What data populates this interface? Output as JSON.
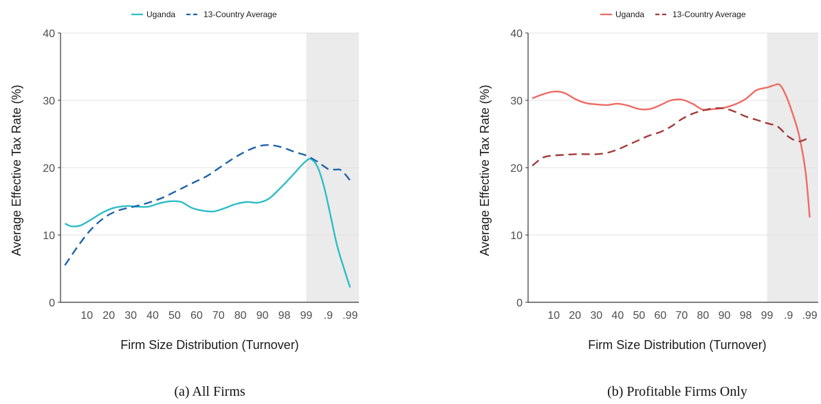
{
  "colors": {
    "panel_a": {
      "uganda": "#2dbdc4",
      "average": "#1f63a8"
    },
    "panel_b": {
      "uganda": "#ef6a64",
      "average": "#a33a3a"
    },
    "shade": "#ebebeb",
    "grid": "#e2e2e2",
    "axis": "#333333"
  },
  "chart_data": [
    {
      "type": "line",
      "caption": "(a) All Firms",
      "xlabel": "Firm Size Distribution (Turnover)",
      "ylabel": "Average Effective Tax Rate (%)",
      "ylim": [
        0,
        40
      ],
      "yticks": [
        0,
        10,
        20,
        30,
        40
      ],
      "xtick_labels": [
        "10",
        "20",
        "30",
        "40",
        "50",
        "60",
        "70",
        "80",
        "90",
        "98",
        "99",
        ".9",
        ".99"
      ],
      "xtick_index": [
        1,
        2,
        3,
        4,
        5,
        6,
        7,
        8,
        9,
        10,
        11,
        12,
        13
      ],
      "xlim": [
        -0.2,
        13.4
      ],
      "shaded_region": [
        11,
        13.4
      ],
      "grid": true,
      "legend_position": "top",
      "series": [
        {
          "name": "Uganda",
          "style": "solid",
          "x": [
            0,
            0.3,
            0.7,
            1.2,
            1.7,
            2.2,
            2.8,
            3.3,
            3.8,
            4.3,
            4.8,
            5.3,
            5.8,
            6.3,
            6.8,
            7.3,
            7.8,
            8.3,
            8.8,
            9.3,
            9.8,
            10.3,
            10.8,
            11,
            11.2,
            11.5,
            11.8,
            12.1,
            12.4,
            12.7,
            13
          ],
          "y": [
            11.7,
            11.3,
            11.4,
            12.3,
            13.3,
            14,
            14.3,
            14.2,
            14.2,
            14.7,
            15,
            14.9,
            14,
            13.6,
            13.5,
            14,
            14.6,
            14.9,
            14.8,
            15.4,
            16.9,
            18.6,
            20.4,
            21,
            21.3,
            20.2,
            17.3,
            13,
            8.5,
            5.2,
            2.2
          ]
        },
        {
          "name": "13-Country Average",
          "style": "dashed",
          "x": [
            0,
            0.5,
            1,
            1.5,
            2,
            2.5,
            3,
            3.5,
            4,
            4.5,
            5,
            5.5,
            6,
            6.5,
            7,
            7.5,
            8,
            8.5,
            9,
            9.5,
            10,
            10.5,
            11,
            11.5,
            12,
            12.3,
            12.6,
            13
          ],
          "y": [
            5.5,
            7.9,
            10.1,
            11.8,
            13,
            13.7,
            14.1,
            14.5,
            15,
            15.6,
            16.4,
            17.2,
            18,
            18.8,
            19.9,
            21,
            22,
            22.8,
            23.3,
            23.3,
            22.9,
            22.3,
            21.8,
            20.9,
            19.8,
            19.7,
            19.6,
            18.1
          ]
        }
      ]
    },
    {
      "type": "line",
      "caption": "(b) Profitable Firms Only",
      "xlabel": "Firm Size Distribution (Turnover)",
      "ylabel": "Average Effective Tax Rate (%)",
      "ylim": [
        0,
        40
      ],
      "yticks": [
        0,
        10,
        20,
        30,
        40
      ],
      "xtick_labels": [
        "10",
        "20",
        "30",
        "40",
        "50",
        "60",
        "70",
        "80",
        "90",
        "98",
        "99",
        ".9",
        ".99"
      ],
      "xtick_index": [
        1,
        2,
        3,
        4,
        5,
        6,
        7,
        8,
        9,
        10,
        11,
        12,
        13
      ],
      "xlim": [
        -0.2,
        13.4
      ],
      "shaded_region": [
        11,
        13.4
      ],
      "grid": true,
      "legend_position": "top",
      "series": [
        {
          "name": "Uganda",
          "style": "solid",
          "x": [
            0,
            0.5,
            1,
            1.5,
            2,
            2.5,
            3,
            3.5,
            4,
            4.5,
            5,
            5.5,
            6,
            6.5,
            7,
            7.5,
            8,
            8.5,
            9,
            9.5,
            10,
            10.5,
            11,
            11.3,
            11.6,
            11.9,
            12.2,
            12.5,
            12.8,
            13
          ],
          "y": [
            30.3,
            30.9,
            31.3,
            31.1,
            30.2,
            29.6,
            29.4,
            29.3,
            29.5,
            29.2,
            28.7,
            28.7,
            29.3,
            30,
            30.1,
            29.5,
            28.6,
            28.7,
            28.9,
            29.4,
            30.2,
            31.5,
            31.9,
            32.2,
            32.3,
            30.6,
            28,
            24.8,
            19.5,
            12.6
          ]
        },
        {
          "name": "13-Country Average",
          "style": "dashed",
          "x": [
            0,
            0.5,
            1,
            1.5,
            2,
            2.5,
            3,
            3.5,
            4,
            4.5,
            5,
            5.5,
            6,
            6.5,
            7,
            7.5,
            8,
            8.5,
            9,
            9.5,
            10,
            10.5,
            11,
            11.5,
            12,
            12.5,
            13
          ],
          "y": [
            20.3,
            21.5,
            21.8,
            21.9,
            22,
            22,
            22,
            22.2,
            22.7,
            23.4,
            24.1,
            24.8,
            25.3,
            26.1,
            27.2,
            28,
            28.5,
            28.8,
            28.8,
            28.3,
            27.6,
            27.1,
            26.6,
            26.1,
            24.6,
            23.9,
            24.5
          ]
        }
      ]
    }
  ]
}
